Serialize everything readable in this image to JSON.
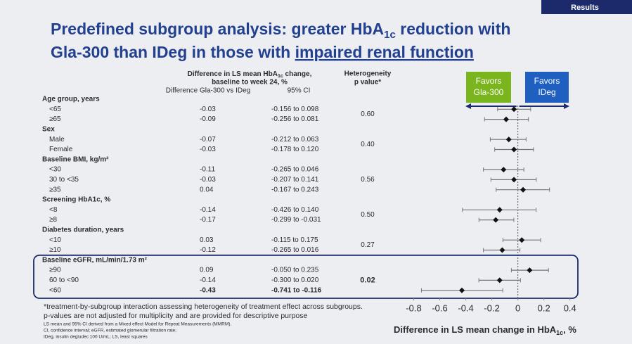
{
  "badge": "Results",
  "chart_data": {
    "type": "forest",
    "title": {
      "line1": [
        "Predefined subgroup analysis: greater HbA",
        "1c",
        " reduction with"
      ],
      "line2": [
        "Gla-300 than IDeg in those with ",
        "impaired renal function"
      ]
    },
    "column_headers": {
      "difference": [
        "Difference in LS mean HbA",
        "1c",
        " change,"
      ],
      "difference_2": "baseline to week 24, %",
      "difference_3": "Difference Gla-300 vs IDeg",
      "ci": "95% CI",
      "heterogeneity": [
        "Heterogeneity",
        "p value*"
      ]
    },
    "favors": {
      "left": [
        "Favors",
        "Gla-300"
      ],
      "right": [
        "Favors",
        "IDeg"
      ]
    },
    "groups": [
      {
        "label": "Age group, years",
        "p_value": "0.60",
        "rows": [
          {
            "label": "<65",
            "value": -0.03,
            "ci_low": -0.156,
            "ci_high": 0.098,
            "ci_label": "-0.156 to 0.098"
          },
          {
            "label": "≥65",
            "value": -0.09,
            "ci_low": -0.256,
            "ci_high": 0.081,
            "ci_label": "-0.256 to 0.081"
          }
        ]
      },
      {
        "label": "Sex",
        "p_value": "0.40",
        "rows": [
          {
            "label": "Male",
            "value": -0.07,
            "ci_low": -0.212,
            "ci_high": 0.063,
            "ci_label": "-0.212 to 0.063"
          },
          {
            "label": "Female",
            "value": -0.03,
            "ci_low": -0.178,
            "ci_high": 0.12,
            "ci_label": "-0.178 to 0.120"
          }
        ]
      },
      {
        "label": "Baseline BMI, kg/m²",
        "p_value": "0.56",
        "rows": [
          {
            "label": "<30",
            "value": -0.11,
            "ci_low": -0.265,
            "ci_high": 0.046,
            "ci_label": "-0.265 to 0.046"
          },
          {
            "label": "30 to <35",
            "value": -0.03,
            "ci_low": -0.207,
            "ci_high": 0.141,
            "ci_label": "-0.207 to 0.141"
          },
          {
            "label": "≥35",
            "value": 0.04,
            "ci_low": -0.167,
            "ci_high": 0.243,
            "ci_label": "-0.167 to 0.243"
          }
        ]
      },
      {
        "label": "Screening HbA1c, %",
        "p_value": "0.50",
        "rows": [
          {
            "label": "<8",
            "value": -0.14,
            "ci_low": -0.426,
            "ci_high": 0.14,
            "ci_label": "-0.426 to 0.140"
          },
          {
            "label": "≥8",
            "value": -0.17,
            "ci_low": -0.299,
            "ci_high": -0.031,
            "ci_label": "-0.299 to -0.031"
          }
        ]
      },
      {
        "label": "Diabetes duration, years",
        "p_value": "0.27",
        "rows": [
          {
            "label": "<10",
            "value": 0.03,
            "ci_low": -0.115,
            "ci_high": 0.175,
            "ci_label": "-0.115 to 0.175"
          },
          {
            "label": "≥10",
            "value": -0.12,
            "ci_low": -0.265,
            "ci_high": 0.016,
            "ci_label": "-0.265 to 0.016"
          }
        ]
      },
      {
        "label": "Baseline eGFR, mL/min/1.73 m²",
        "p_value": "0.02",
        "highlight": true,
        "rows": [
          {
            "label": "≥90",
            "value": 0.09,
            "ci_low": -0.05,
            "ci_high": 0.235,
            "ci_label": "-0.050 to 0.235"
          },
          {
            "label": "60 to <90",
            "value": -0.14,
            "ci_low": -0.3,
            "ci_high": 0.02,
            "ci_label": "-0.300 to 0.020"
          },
          {
            "label": "<60",
            "value": -0.43,
            "ci_low": -0.741,
            "ci_high": -0.116,
            "ci_label": "-0.741 to -0.116"
          }
        ]
      }
    ],
    "xlim": [
      -0.9,
      0.45
    ],
    "xticks": [
      -0.8,
      -0.6,
      -0.4,
      -0.2,
      0,
      0.2,
      0.4
    ],
    "xlabel": [
      "Difference in LS mean change in HbA",
      "1c",
      ", %"
    ],
    "footnotes": [
      "*treatment-by-subgroup interaction assessing heterogeneity of treatment effect across subgroups.",
      "p-values are not adjusted for multiplicity and are provided for descriptive purpose"
    ],
    "small_footnotes": [
      "LS mean and 95% CI derived from a Mixed effect Model for Repeat Measurements (MMRM).",
      "CI, confidence interval; eGFR, estimated glomerular filtration rate;",
      "IDeg, insulin degludec 100 U/mL; LS, least squares"
    ]
  }
}
